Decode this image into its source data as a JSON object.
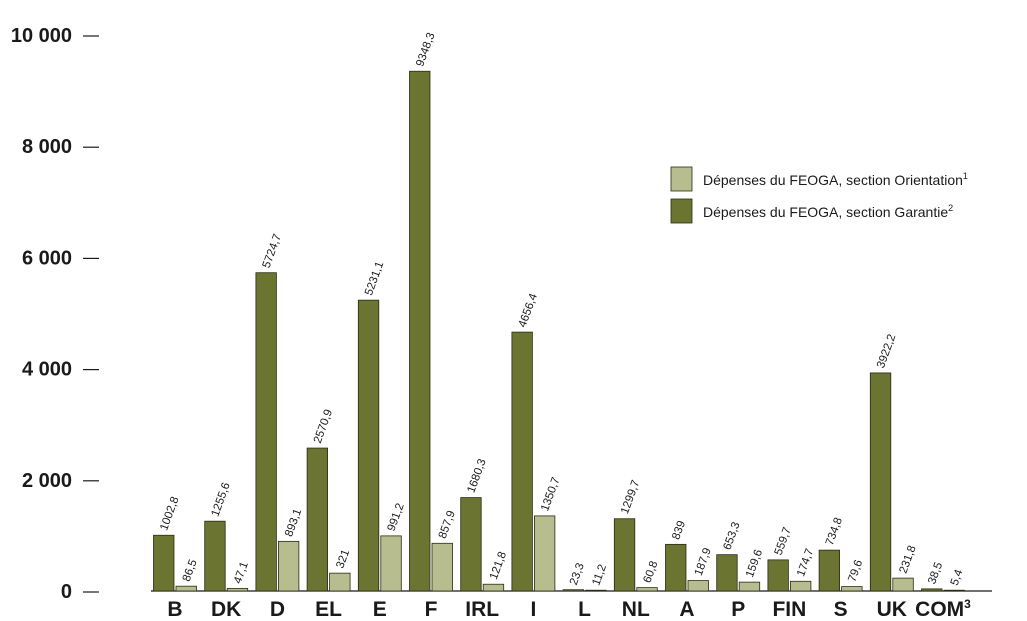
{
  "chart_data": {
    "type": "bar",
    "title": "",
    "xlabel": "",
    "ylabel": "",
    "ylim": [
      0,
      10000
    ],
    "yticks": [
      {
        "value": 0,
        "label": "0"
      },
      {
        "value": 2000,
        "label": "2 000"
      },
      {
        "value": 4000,
        "label": "4 000"
      },
      {
        "value": 6000,
        "label": "6 000"
      },
      {
        "value": 8000,
        "label": "8 000"
      },
      {
        "value": 10000,
        "label": "10 000"
      }
    ],
    "categories": [
      "B",
      "DK",
      "D",
      "EL",
      "E",
      "F",
      "IRL",
      "I",
      "L",
      "NL",
      "A",
      "P",
      "FIN",
      "S",
      "UK",
      "COM"
    ],
    "category_suffix": {
      "COM": "3"
    },
    "legend_position": "top-right",
    "series": [
      {
        "name": "Dépenses du FEOGA, section Garantie",
        "name_sup": "2",
        "color": "#6b7430",
        "values": [
          1002.8,
          1255.6,
          5724.7,
          2570.9,
          5231.1,
          9348.3,
          1680.3,
          4656.4,
          23.3,
          1299.7,
          839,
          653.3,
          559.7,
          734.8,
          3922.2,
          38.5
        ],
        "labels": [
          "1002,8",
          "1255,6",
          "5724,7",
          "2570,9",
          "5231,1",
          "9348,3",
          "1680,3",
          "4656,4",
          "23,3",
          "1299,7",
          "839",
          "653,3",
          "559,7",
          "734,8",
          "3922,2",
          "38,5"
        ]
      },
      {
        "name": "Dépenses du FEOGA, section Orientation",
        "name_sup": "1",
        "color": "#b7bd8f",
        "values": [
          86.5,
          47.1,
          893.1,
          321,
          991.2,
          857.9,
          121.8,
          1350.7,
          11.2,
          60.8,
          187.9,
          159.6,
          174.7,
          79.6,
          231.8,
          5.4
        ],
        "labels": [
          "86,5",
          "47,1",
          "893,1",
          "321",
          "991,2",
          "857,9",
          "121,8",
          "1350,7",
          "11,2",
          "60,8",
          "187,9",
          "159,6",
          "174,7",
          "79,6",
          "231,8",
          "5,4"
        ]
      }
    ],
    "legend_order": [
      1,
      0
    ]
  }
}
